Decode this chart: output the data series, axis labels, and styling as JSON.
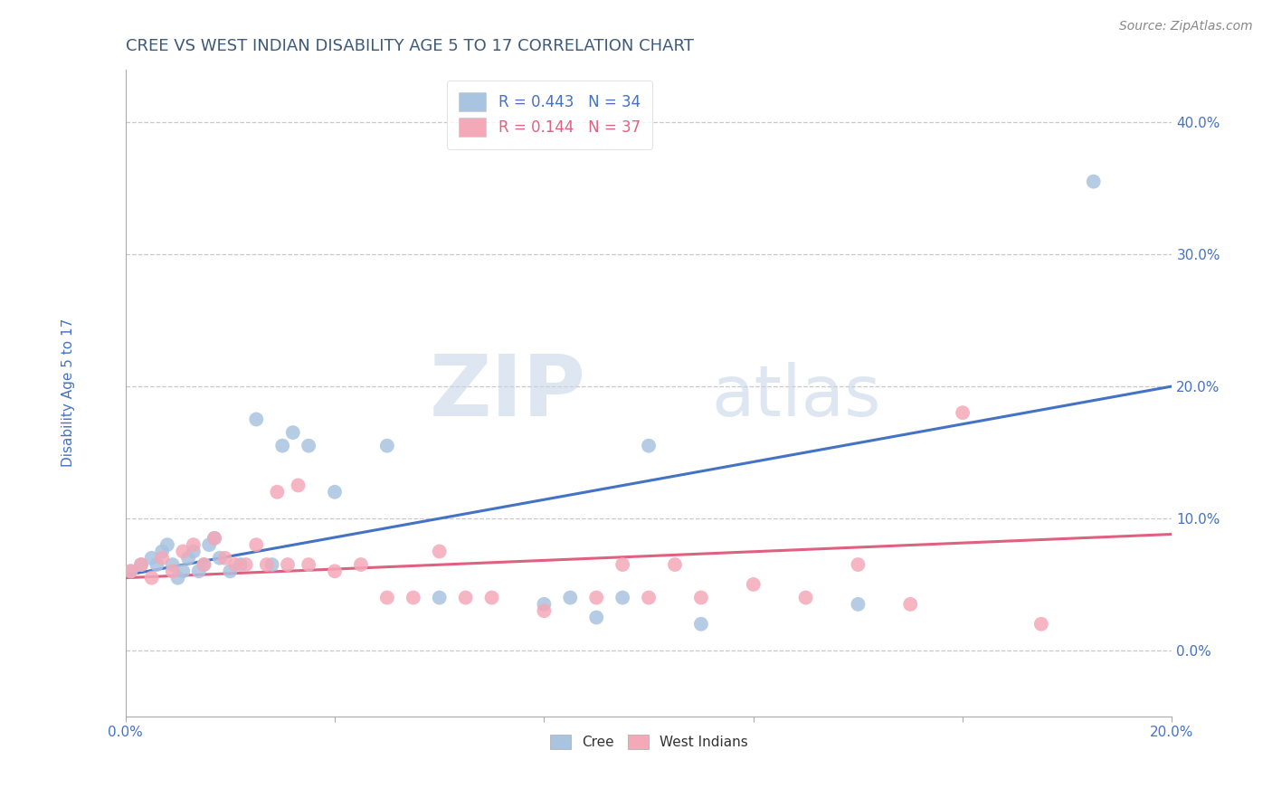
{
  "title": "CREE VS WEST INDIAN DISABILITY AGE 5 TO 17 CORRELATION CHART",
  "source": "Source: ZipAtlas.com",
  "ylabel": "Disability Age 5 to 17",
  "xlim": [
    0.0,
    0.2
  ],
  "ylim": [
    -0.05,
    0.44
  ],
  "yticks": [
    0.0,
    0.1,
    0.2,
    0.3,
    0.4
  ],
  "xticks": [
    0.0,
    0.04,
    0.08,
    0.12,
    0.16,
    0.2
  ],
  "xtick_labels_show": [
    "0.0%",
    "",
    "",
    "",
    "",
    "20.0%"
  ],
  "ytick_labels": [
    "0.0%",
    "10.0%",
    "20.0%",
    "30.0%",
    "40.0%"
  ],
  "cree_color": "#a8c4e0",
  "west_indian_color": "#f4a8b8",
  "cree_line_color": "#4472c4",
  "west_indian_line_color": "#e06080",
  "cree_R": 0.443,
  "cree_N": 34,
  "west_indian_R": 0.144,
  "west_indian_N": 37,
  "cree_scatter_x": [
    0.001,
    0.003,
    0.005,
    0.006,
    0.007,
    0.008,
    0.009,
    0.01,
    0.011,
    0.012,
    0.013,
    0.014,
    0.015,
    0.016,
    0.017,
    0.018,
    0.02,
    0.022,
    0.025,
    0.028,
    0.03,
    0.032,
    0.035,
    0.04,
    0.05,
    0.06,
    0.08,
    0.085,
    0.09,
    0.095,
    0.1,
    0.11,
    0.14,
    0.185
  ],
  "cree_scatter_y": [
    0.06,
    0.065,
    0.07,
    0.065,
    0.075,
    0.08,
    0.065,
    0.055,
    0.06,
    0.07,
    0.075,
    0.06,
    0.065,
    0.08,
    0.085,
    0.07,
    0.06,
    0.065,
    0.175,
    0.065,
    0.155,
    0.165,
    0.155,
    0.12,
    0.155,
    0.04,
    0.035,
    0.04,
    0.025,
    0.04,
    0.155,
    0.02,
    0.035,
    0.355
  ],
  "west_indian_scatter_x": [
    0.001,
    0.003,
    0.005,
    0.007,
    0.009,
    0.011,
    0.013,
    0.015,
    0.017,
    0.019,
    0.021,
    0.023,
    0.025,
    0.027,
    0.029,
    0.031,
    0.033,
    0.035,
    0.04,
    0.045,
    0.05,
    0.055,
    0.06,
    0.065,
    0.07,
    0.08,
    0.09,
    0.095,
    0.1,
    0.105,
    0.11,
    0.12,
    0.13,
    0.14,
    0.15,
    0.16,
    0.175
  ],
  "west_indian_scatter_y": [
    0.06,
    0.065,
    0.055,
    0.07,
    0.06,
    0.075,
    0.08,
    0.065,
    0.085,
    0.07,
    0.065,
    0.065,
    0.08,
    0.065,
    0.12,
    0.065,
    0.125,
    0.065,
    0.06,
    0.065,
    0.04,
    0.04,
    0.075,
    0.04,
    0.04,
    0.03,
    0.04,
    0.065,
    0.04,
    0.065,
    0.04,
    0.05,
    0.04,
    0.065,
    0.035,
    0.18,
    0.02
  ],
  "cree_trend_x": [
    0.0,
    0.2
  ],
  "cree_trend_y": [
    0.057,
    0.2
  ],
  "west_indian_trend_x": [
    0.0,
    0.2
  ],
  "west_indian_trend_y": [
    0.055,
    0.088
  ],
  "watermark_zip": "ZIP",
  "watermark_atlas": "atlas",
  "title_color": "#3d5a7a",
  "tick_color": "#4472c4",
  "grid_color": "#c8c8c8",
  "background_color": "#ffffff",
  "title_fontsize": 13,
  "label_fontsize": 11,
  "tick_fontsize": 11,
  "legend_fontsize": 12,
  "source_fontsize": 10
}
